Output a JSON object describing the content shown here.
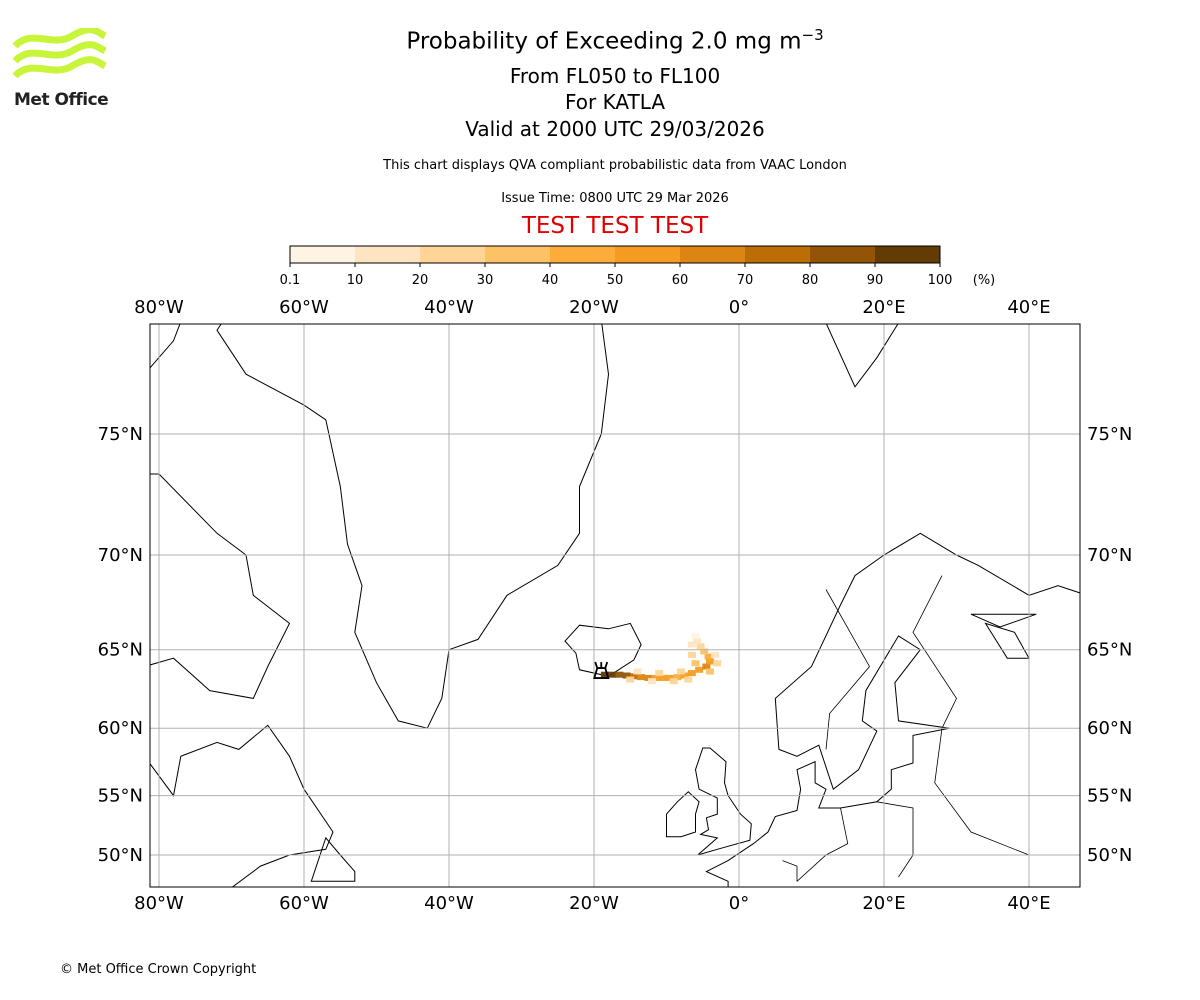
{
  "logo": {
    "text": "Met Office",
    "color": "#c8f53a"
  },
  "header": {
    "title_main": "Probability of Exceeding 2.0 mg m",
    "title_sup": "−3",
    "level": "From FL050 to FL100",
    "volcano": "For KATLA",
    "valid": "Valid at 2000 UTC 29/03/2026",
    "note": "This chart displays QVA compliant probabilistic data from VAAC London",
    "issue": "Issue Time: 0800 UTC 29 Mar 2026",
    "test": "TEST TEST TEST"
  },
  "footer": {
    "copyright": "© Met Office Crown Copyright"
  },
  "chart_data": {
    "type": "heatmap",
    "title": "Probability of Exceeding 2.0 mg m−3",
    "colorbar": {
      "ticks": [
        "0.1",
        "10",
        "20",
        "30",
        "40",
        "50",
        "60",
        "70",
        "80",
        "90",
        "100"
      ],
      "unit": "(%)",
      "colors": [
        "#fff4e3",
        "#ffe4c2",
        "#fed596",
        "#fec266",
        "#fdac3b",
        "#f49c22",
        "#dc8512",
        "#bd6d05",
        "#935406",
        "#633b05"
      ]
    },
    "lon_ticks": [
      "80°W",
      "60°W",
      "40°W",
      "20°W",
      "0°",
      "20°E",
      "40°E"
    ],
    "lon_values": [
      -80,
      -60,
      -40,
      -20,
      0,
      20,
      40
    ],
    "lat_ticks": [
      "75°N",
      "70°N",
      "65°N",
      "60°N",
      "55°N",
      "50°N"
    ],
    "lat_values": [
      75,
      70,
      65,
      60,
      55,
      50
    ],
    "extent": {
      "lon": [
        -81.3,
        47.5
      ],
      "lat": [
        47.6,
        79.7
      ]
    },
    "grid": true,
    "volcano": {
      "name": "KATLA",
      "lon": -19.0,
      "lat": 63.6
    },
    "plume": [
      [
        -18.5,
        63.5,
        92
      ],
      [
        -17.5,
        63.5,
        90
      ],
      [
        -16.5,
        63.5,
        88
      ],
      [
        -15.5,
        63.45,
        82
      ],
      [
        -14.5,
        63.4,
        75
      ],
      [
        -13.5,
        63.35,
        68
      ],
      [
        -12.5,
        63.3,
        62
      ],
      [
        -11.5,
        63.3,
        58
      ],
      [
        -10.5,
        63.3,
        55
      ],
      [
        -9.5,
        63.3,
        52
      ],
      [
        -8.5,
        63.35,
        48
      ],
      [
        -7.5,
        63.45,
        50
      ],
      [
        -6.5,
        63.6,
        52
      ],
      [
        -5.5,
        63.8,
        58
      ],
      [
        -4.5,
        64.0,
        62
      ],
      [
        -4,
        64.3,
        55
      ],
      [
        -4.2,
        64.6,
        45
      ],
      [
        -4.8,
        64.9,
        35
      ],
      [
        -5.3,
        65.2,
        25
      ],
      [
        -5.8,
        65.5,
        15
      ],
      [
        -15,
        63.2,
        20
      ],
      [
        -12,
        63.1,
        15
      ],
      [
        -9,
        63.1,
        20
      ],
      [
        -7,
        63.2,
        25
      ],
      [
        -4,
        63.7,
        30
      ],
      [
        -3,
        64.2,
        20
      ],
      [
        -3.3,
        64.7,
        12
      ],
      [
        -6,
        64.2,
        30
      ],
      [
        -6.5,
        64.7,
        20
      ],
      [
        -6.5,
        65.3,
        10
      ],
      [
        -6,
        65.8,
        8
      ],
      [
        -8,
        63.7,
        25
      ],
      [
        -11,
        63.6,
        20
      ],
      [
        -14,
        63.7,
        15
      ]
    ]
  }
}
